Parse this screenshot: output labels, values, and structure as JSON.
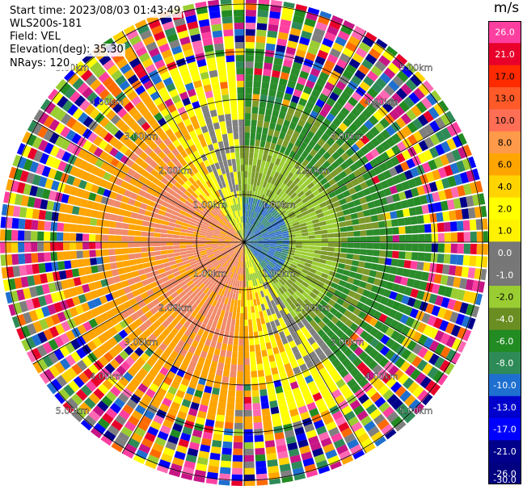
{
  "info": {
    "start_time": "Start time: 2023/08/03 01:43:49",
    "instrument": "WLS200s-181",
    "field": "Field: VEL",
    "elevation": "Elevation(deg): 35.30",
    "nrays": "NRays: 120"
  },
  "colorbar": {
    "unit": "m/s",
    "labels": [
      "26.0",
      "21.0",
      "17.0",
      "13.0",
      "10.0",
      "8.0",
      "6.0",
      "4.0",
      "2.0",
      "1.0",
      "0.0",
      "-1.0",
      "-2.0",
      "-4.0",
      "-6.0",
      "-8.0",
      "-10.0",
      "-13.0",
      "-17.0",
      "-21.0",
      "-26.0",
      "-30.0"
    ],
    "colors": [
      "#ff3fa0",
      "#e8002a",
      "#ff2a00",
      "#ff5a28",
      "#ff6e55",
      "#ff9a4a",
      "#ffa500",
      "#ffd400",
      "#ffff00",
      "#fff200",
      "#777777",
      "#777777",
      "#9acd32",
      "#6b8e23",
      "#228b22",
      "#2e8b57",
      "#1e6fd0",
      "#0000cd",
      "#0000ff",
      "#00008b",
      "#000080"
    ]
  },
  "range_rings": {
    "labels": [
      "1.00km",
      "2.00km",
      "3.00km",
      "4.00km",
      "5.00km"
    ]
  },
  "velocity_field": {
    "rays": 120,
    "wind_direction": "toward_lower_right",
    "noise_beyond": "3.00km"
  }
}
